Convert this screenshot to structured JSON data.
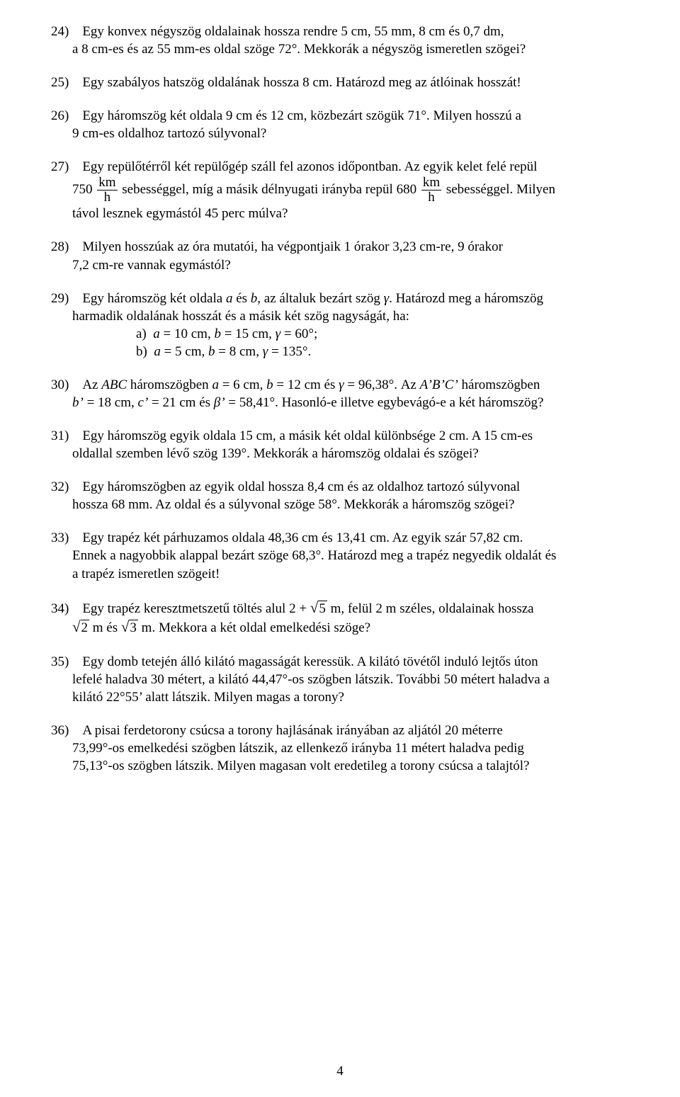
{
  "page": {
    "number": "4",
    "font_family": "Times New Roman",
    "font_size_pt": 14,
    "text_color": "#000000",
    "background_color": "#ffffff"
  },
  "p24": {
    "l1a": "24) Egy konvex négyszög oldalainak hossza rendre 5 cm, 55 mm, 8 cm és 0,7 dm,",
    "l2": "a 8 cm-es és az 55 mm-es oldal szöge 72°. Mekkorák a négyszög ismeretlen szögei?"
  },
  "p25": {
    "l1": "25) Egy szabályos hatszög oldalának hossza 8 cm. Határozd meg az átlóinak hosszát!"
  },
  "p26": {
    "l1": "26) Egy háromszög két oldala 9 cm és 12 cm, közbezárt szögük 71°. Milyen hosszú a",
    "l2": "9 cm-es oldalhoz tartozó súlyvonal?"
  },
  "p27": {
    "l1": "27) Egy repülőtérről két repülőgép száll fel azonos időpontban. Az egyik kelet felé repül",
    "n750": "750",
    "fr_num": "km",
    "fr_den": "h",
    "mid": " sebességgel, míg a másik délnyugati irányba repül 680 ",
    "fr2_num": "km",
    "fr2_den": "h",
    "tail": " sebességgel. Milyen",
    "l3": "távol lesznek egymástól 45 perc múlva?"
  },
  "p28": {
    "l1": "28) Milyen hosszúak az óra mutatói, ha végpontjaik 1 órakor 3,23 cm-re, 9 órakor",
    "l2": "7,2 cm-re vannak egymástól?"
  },
  "p29": {
    "l1a": "29) Egy háromszög két oldala ",
    "ia": "a",
    "l1b": " és ",
    "ib": "b",
    "l1c": ", az általuk bezárt szög ",
    "ig": "γ",
    "l1d": ". Határozd meg a háromszög",
    "l2": "harmadik oldalának hosszát és a másik két szög nagyságát, ha:",
    "a_pre": "a) ",
    "a_ia": "a",
    "a_eq1": " = 10 cm, ",
    "a_ib": "b",
    "a_eq2": " = 15 cm, ",
    "a_ig": "γ",
    "a_eq3": " = 60°;",
    "b_pre": "b) ",
    "b_ia": "a",
    "b_eq1": " = 5 cm, ",
    "b_ib": "b",
    "b_eq2": " = 8 cm, ",
    "b_ig": "γ",
    "b_eq3": " = 135°."
  },
  "p30": {
    "l1a": "30) Az ",
    "iABC": "ABC",
    "l1b": " háromszögben ",
    "ia": "a",
    "l1c": " = 6 cm, ",
    "ib": "b",
    "l1d": " = 12 cm és ",
    "ig": "γ",
    "l1e": " = 96,38°. Az ",
    "iABCp": "A’B’C’",
    "l1f": " háromszögben",
    "l2a_ibp": "b’",
    "l2b": " = 18 cm, ",
    "l2_icp": "c’",
    "l2c": " = 21 cm és ",
    "l2_ibeta": "β’",
    "l2d": " = 58,41°. Hasonló-e illetve egybevágó-e a két háromszög?"
  },
  "p31": {
    "l1": "31) Egy háromszög egyik oldala 15 cm, a másik két oldal különbsége 2 cm. A 15 cm-es",
    "l2": "oldallal szemben lévő szög 139°. Mekkorák a háromszög oldalai és szögei?"
  },
  "p32": {
    "l1": "32) Egy háromszögben az egyik oldal hossza 8,4 cm és az oldalhoz tartozó súlyvonal",
    "l2": "hossza 68 mm. Az oldal és a súlyvonal szöge 58°. Mekkorák a háromszög szögei?"
  },
  "p33": {
    "l1": "33) Egy trapéz két párhuzamos oldala 48,36 cm és 13,41 cm. Az egyik szár 57,82 cm.",
    "l2": "Ennek a nagyobbik alappal bezárt szöge 68,3°. Határozd meg a trapéz negyedik oldalát és",
    "l3": "a trapéz ismeretlen szögeit!"
  },
  "p34": {
    "l1a": "34) Egy trapéz keresztmetszetű töltés alul ",
    "two_plus": "2 + ",
    "sqrt5_rad": "5",
    "l1b": " m, felül 2 m széles, oldalainak hossza",
    "sqrt2_rad": "2",
    "mid2": " m és ",
    "sqrt3_rad": "3",
    "l2b": " m. Mekkora a két oldal emelkedési szöge?"
  },
  "p35": {
    "l1": "35) Egy domb tetején álló kilátó magasságát keressük. A kilátó tövétől induló lejtős úton",
    "l2": "lefelé haladva 30 métert, a kilátó 44,47°-os szögben látszik. További 50 métert haladva a",
    "l3": "kilátó 22°55’ alatt látszik. Milyen magas a torony?"
  },
  "p36": {
    "l1": "36) A pisai ferdetorony csúcsa a torony hajlásának irányában az aljától 20 méterre",
    "l2": "73,99°-os emelkedési szögben látszik, az ellenkező irányba 11 métert haladva pedig",
    "l3": "75,13°-os szögben látszik. Milyen magasan volt eredetileg a torony csúcsa a talajtól?"
  }
}
